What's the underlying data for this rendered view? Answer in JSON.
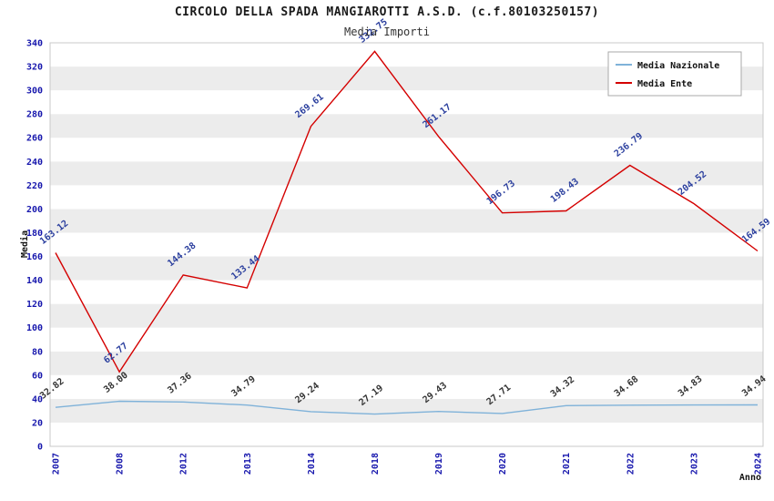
{
  "chart_data": {
    "type": "line",
    "title": "CIRCOLO DELLA SPADA MANGIAROTTI A.S.D. (c.f.80103250157)",
    "subtitle": "Media Importi",
    "xlabel": "Anno",
    "ylabel": "Media",
    "categories": [
      "2007",
      "2008",
      "2012",
      "2013",
      "2014",
      "2018",
      "2019",
      "2020",
      "2021",
      "2022",
      "2023",
      "2024"
    ],
    "series": [
      {
        "name": "Media Nazionale",
        "color": "#7fb2d9",
        "label_color": "#333333",
        "values": [
          32.82,
          38.0,
          37.36,
          34.79,
          29.24,
          27.19,
          29.43,
          27.71,
          34.32,
          34.68,
          34.83,
          34.94
        ],
        "labels": [
          "32.82",
          "38.00",
          "37.36",
          "34.79",
          "29.24",
          "27.19",
          "29.43",
          "27.71",
          "34.32",
          "34.68",
          "34.83",
          "34.94"
        ]
      },
      {
        "name": "Media Ente",
        "color": "#d40000",
        "label_color": "#2b3f9e",
        "values": [
          163.12,
          62.77,
          144.38,
          133.44,
          269.61,
          332.75,
          261.17,
          196.73,
          198.43,
          236.79,
          204.52,
          164.59
        ],
        "labels": [
          "163.12",
          "62.77",
          "144.38",
          "133.44",
          "269.61",
          "332.75",
          "261.17",
          "196.73",
          "198.43",
          "236.79",
          "204.52",
          "164.59"
        ]
      }
    ],
    "ylim": [
      0,
      340
    ],
    "ytick_step": 20,
    "grid": "striped-bands",
    "stripe_colors": [
      "#ffffff",
      "#ececec"
    ],
    "legend_position": "top-right"
  }
}
